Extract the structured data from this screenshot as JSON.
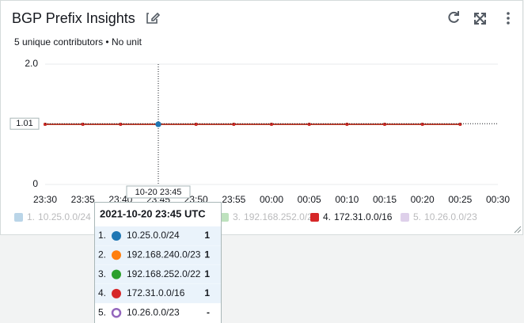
{
  "chart_data": {
    "type": "line",
    "title": "BGP Prefix Insights",
    "subtitle": "5 unique contributors • No unit",
    "categories": [
      "23:30",
      "23:35",
      "23:40",
      "23:45",
      "23:50",
      "23:55",
      "00:00",
      "00:05",
      "00:10",
      "00:15",
      "00:20",
      "00:25",
      "00:30"
    ],
    "series": [
      {
        "rank": "1.",
        "name": "10.25.0.0/24",
        "color": "#1f77b4",
        "values": [
          1,
          1,
          1,
          1,
          1,
          1,
          1,
          1,
          1,
          1,
          1,
          1,
          null
        ]
      },
      {
        "rank": "2.",
        "name": "192.168.240.0/23",
        "color": "#ff7f0e",
        "values": [
          1,
          1,
          1,
          1,
          1,
          1,
          1,
          1,
          1,
          1,
          1,
          1,
          null
        ]
      },
      {
        "rank": "3.",
        "name": "192.168.252.0/22",
        "color": "#2ca02c",
        "values": [
          1,
          1,
          1,
          1,
          1,
          1,
          1,
          1,
          1,
          1,
          1,
          1,
          null
        ]
      },
      {
        "rank": "4.",
        "name": "172.31.0.0/16",
        "color": "#d62728",
        "values": [
          1,
          1,
          1,
          1,
          1,
          1,
          1,
          1,
          1,
          1,
          1,
          1,
          null
        ]
      },
      {
        "rank": "5.",
        "name": "10.26.0.0/23",
        "color": "#9467bd",
        "values": [
          null,
          null,
          null,
          null,
          null,
          null,
          null,
          null,
          null,
          null,
          null,
          null,
          null
        ]
      }
    ],
    "ylim": [
      0,
      2
    ],
    "yticks": [
      0,
      {
        "value": 2,
        "label": "2.0"
      }
    ],
    "grid": true,
    "crosshair": {
      "y": 1.01,
      "x_label": "10-20 23:45"
    }
  },
  "tooltip": {
    "header": "2021-10-20 23:45 UTC",
    "values": [
      1,
      1,
      1,
      1,
      "-"
    ]
  }
}
